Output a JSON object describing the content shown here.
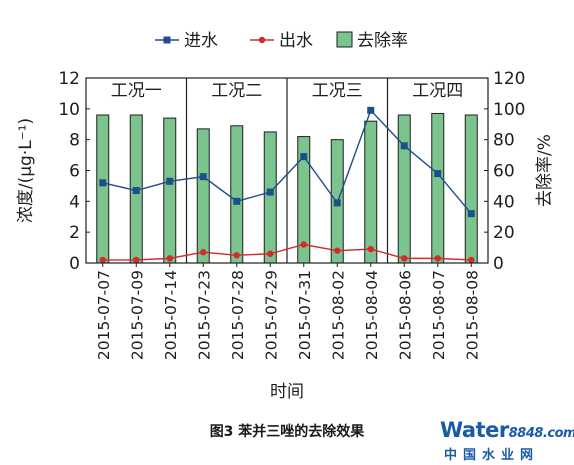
{
  "chart_data": {
    "type": "bar+line",
    "categories": [
      "2015-07-07",
      "2015-07-09",
      "2015-07-14",
      "2015-07-23",
      "2015-07-28",
      "2015-07-29",
      "2015-07-31",
      "2015-08-02",
      "2015-08-04",
      "2015-08-06",
      "2015-08-07",
      "2015-08-08"
    ],
    "series": [
      {
        "name": "进水",
        "axis": "left",
        "kind": "line",
        "color": "#1f4e8c",
        "marker": "square",
        "values": [
          5.2,
          4.7,
          5.3,
          5.6,
          4.0,
          4.6,
          6.9,
          3.9,
          9.9,
          7.6,
          5.8,
          3.2
        ]
      },
      {
        "name": "出水",
        "axis": "left",
        "kind": "line",
        "color": "#d62a2a",
        "marker": "circle",
        "values": [
          0.2,
          0.2,
          0.3,
          0.7,
          0.5,
          0.6,
          1.2,
          0.8,
          0.9,
          0.3,
          0.3,
          0.2
        ]
      },
      {
        "name": "去除率",
        "axis": "right",
        "kind": "bar",
        "color": "#7bc48e",
        "values": [
          96,
          96,
          94,
          87,
          89,
          85,
          82,
          80,
          92,
          96,
          97,
          96
        ]
      }
    ],
    "groups": [
      {
        "label": "工况一",
        "start": 0,
        "end": 2
      },
      {
        "label": "工况二",
        "start": 3,
        "end": 5
      },
      {
        "label": "工况三",
        "start": 6,
        "end": 8
      },
      {
        "label": "工况四",
        "start": 9,
        "end": 11
      }
    ],
    "ylabel": "浓度/(μg·L⁻¹)",
    "y2label": "去除率/%",
    "xlabel": "时间",
    "ylim": [
      0,
      12
    ],
    "y2lim": [
      0,
      120
    ],
    "yticks": [
      0,
      2,
      4,
      6,
      8,
      10,
      12
    ],
    "y2ticks": [
      0,
      20,
      40,
      60,
      80,
      100,
      120
    ],
    "legend_position": "top"
  },
  "caption": "图3  苯并三唑的去除效果",
  "watermark": {
    "brand": "Water",
    "num": "8848",
    "suffix": ".com",
    "cn": "中国水业网"
  }
}
